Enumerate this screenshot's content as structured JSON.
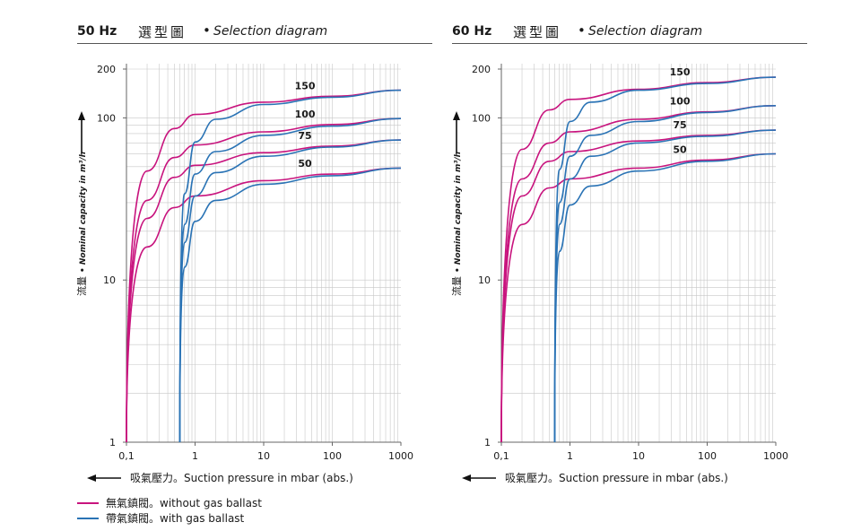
{
  "colors": {
    "without_ballast": "#c8147e",
    "with_ballast": "#2a73b5",
    "grid": "#c8c8c8",
    "axis": "#666666"
  },
  "panels": [
    {
      "freq": "50 Hz",
      "title_cjk": "選型圖",
      "title_bullet": "•",
      "title_en": "Selection diagram"
    },
    {
      "freq": "60 Hz",
      "title_cjk": "選型圖",
      "title_bullet": "•",
      "title_en": "Selection diagram"
    }
  ],
  "axes": {
    "ylabel_cjk": "流量",
    "ylabel_en": "• Nominal capacity in m³/h",
    "xlabel": "吸氣壓力。Suction pressure in mbar (abs.)",
    "x_ticks": [
      "0,1",
      "1",
      "10",
      "100",
      "1000"
    ],
    "y_ticks": [
      "1",
      "10",
      "100",
      "200"
    ]
  },
  "legend": {
    "without": "無氣鎮閥。without gas ballast",
    "with": "帶氣鎮閥。with gas ballast"
  },
  "chart_data": [
    {
      "type": "line",
      "title": "50 Hz 選型圖 • Selection diagram",
      "xlabel": "吸氣壓力。Suction pressure in mbar (abs.)",
      "ylabel": "流量 • Nominal capacity in m³/h",
      "xscale": "log",
      "yscale": "log",
      "xlim": [
        0.1,
        1000
      ],
      "ylim": [
        1,
        200
      ],
      "grid": true,
      "series": [
        {
          "name": "150",
          "ballast": "without",
          "x": [
            0.1,
            0.2,
            0.5,
            1,
            10,
            100,
            1000
          ],
          "y": [
            1,
            47,
            86,
            105,
            125,
            136,
            148
          ]
        },
        {
          "name": "100",
          "ballast": "without",
          "x": [
            0.1,
            0.2,
            0.5,
            1,
            10,
            100,
            1000
          ],
          "y": [
            1,
            31,
            57,
            68,
            82,
            91,
            99
          ]
        },
        {
          "name": "75",
          "ballast": "without",
          "x": [
            0.1,
            0.2,
            0.5,
            1,
            10,
            100,
            1000
          ],
          "y": [
            1,
            24,
            43,
            51,
            61,
            67,
            73
          ]
        },
        {
          "name": "50",
          "ballast": "without",
          "x": [
            0.1,
            0.2,
            0.5,
            1,
            10,
            100,
            1000
          ],
          "y": [
            1,
            16,
            28,
            33,
            41,
            45,
            49
          ]
        },
        {
          "name": "150",
          "ballast": "with",
          "x": [
            0.6,
            0.7,
            1,
            2,
            10,
            100,
            1000
          ],
          "y": [
            1,
            34,
            71,
            98,
            121,
            134,
            148
          ]
        },
        {
          "name": "100",
          "ballast": "with",
          "x": [
            0.6,
            0.7,
            1,
            2,
            10,
            100,
            1000
          ],
          "y": [
            1,
            22,
            45,
            62,
            78,
            89,
            99
          ]
        },
        {
          "name": "75",
          "ballast": "with",
          "x": [
            0.6,
            0.7,
            1,
            2,
            10,
            100,
            1000
          ],
          "y": [
            1,
            17,
            33,
            46,
            58,
            66,
            73
          ]
        },
        {
          "name": "50",
          "ballast": "with",
          "x": [
            0.6,
            0.7,
            1,
            2,
            10,
            100,
            1000
          ],
          "y": [
            1,
            12,
            23,
            31,
            39,
            44,
            49
          ]
        }
      ]
    },
    {
      "type": "line",
      "title": "60 Hz 選型圖 • Selection diagram",
      "xlabel": "吸氣壓力。Suction pressure in mbar (abs.)",
      "ylabel": "流量 • Nominal capacity in m³/h",
      "xscale": "log",
      "yscale": "log",
      "xlim": [
        0.1,
        1000
      ],
      "ylim": [
        1,
        200
      ],
      "grid": true,
      "series": [
        {
          "name": "150",
          "ballast": "without",
          "x": [
            0.1,
            0.2,
            0.5,
            1,
            10,
            100,
            1000
          ],
          "y": [
            1,
            64,
            112,
            130,
            150,
            165,
            178
          ]
        },
        {
          "name": "100",
          "ballast": "without",
          "x": [
            0.1,
            0.2,
            0.5,
            1,
            10,
            100,
            1000
          ],
          "y": [
            1,
            42,
            70,
            82,
            98,
            109,
            119
          ]
        },
        {
          "name": "75",
          "ballast": "without",
          "x": [
            0.1,
            0.2,
            0.5,
            1,
            10,
            100,
            1000
          ],
          "y": [
            1,
            33,
            54,
            62,
            72,
            78,
            84
          ]
        },
        {
          "name": "50",
          "ballast": "without",
          "x": [
            0.1,
            0.2,
            0.5,
            1,
            10,
            100,
            1000
          ],
          "y": [
            1,
            22,
            37,
            42,
            49,
            55,
            60
          ]
        },
        {
          "name": "150",
          "ballast": "with",
          "x": [
            0.6,
            0.7,
            1,
            2,
            10,
            100,
            1000
          ],
          "y": [
            1,
            48,
            95,
            125,
            148,
            163,
            178
          ]
        },
        {
          "name": "100",
          "ballast": "with",
          "x": [
            0.6,
            0.7,
            1,
            2,
            10,
            100,
            1000
          ],
          "y": [
            1,
            30,
            58,
            78,
            95,
            108,
            119
          ]
        },
        {
          "name": "75",
          "ballast": "with",
          "x": [
            0.6,
            0.7,
            1,
            2,
            10,
            100,
            1000
          ],
          "y": [
            1,
            22,
            42,
            58,
            70,
            77,
            84
          ]
        },
        {
          "name": "50",
          "ballast": "with",
          "x": [
            0.6,
            0.7,
            1,
            2,
            10,
            100,
            1000
          ],
          "y": [
            1,
            15,
            29,
            38,
            47,
            54,
            60
          ]
        }
      ]
    }
  ]
}
